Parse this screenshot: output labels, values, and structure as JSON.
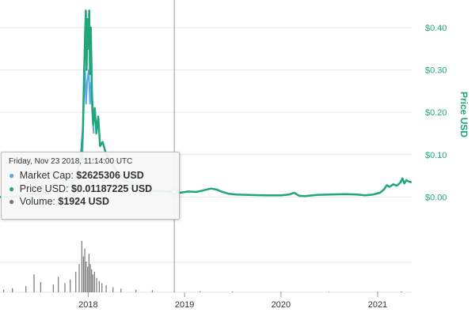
{
  "chart_data": {
    "type": "line",
    "title": "",
    "x_ticks": [
      "2018",
      "2019",
      "2020",
      "2021"
    ],
    "x_range": [
      "2017-02-01",
      "2021-05-10"
    ],
    "y_axis_label": "Price USD",
    "y_ticks": [
      "$0.40",
      "$0.30",
      "$0.20",
      "$0.10",
      "$0.00"
    ],
    "y_range": [
      -0.085,
      0.465
    ],
    "series": [
      {
        "name": "Price USD",
        "color": "#1fa67a",
        "points": [
          [
            "2017-02-01",
            0.0
          ],
          [
            "2017-03-01",
            0.0
          ],
          [
            "2017-04-01",
            0.001
          ],
          [
            "2017-05-01",
            0.005
          ],
          [
            "2017-06-01",
            0.008
          ],
          [
            "2017-07-01",
            0.006
          ],
          [
            "2017-08-01",
            0.01
          ],
          [
            "2017-08-20",
            0.03
          ],
          [
            "2017-09-05",
            0.012
          ],
          [
            "2017-10-01",
            0.018
          ],
          [
            "2017-10-20",
            0.025
          ],
          [
            "2017-11-10",
            0.04
          ],
          [
            "2017-11-25",
            0.07
          ],
          [
            "2017-12-05",
            0.1
          ],
          [
            "2017-12-12",
            0.16
          ],
          [
            "2017-12-16",
            0.28
          ],
          [
            "2017-12-20",
            0.38
          ],
          [
            "2017-12-23",
            0.44
          ],
          [
            "2017-12-26",
            0.3
          ],
          [
            "2017-12-29",
            0.42
          ],
          [
            "2018-01-02",
            0.35
          ],
          [
            "2018-01-05",
            0.44
          ],
          [
            "2018-01-08",
            0.29
          ],
          [
            "2018-01-11",
            0.4
          ],
          [
            "2018-01-15",
            0.25
          ],
          [
            "2018-01-20",
            0.17
          ],
          [
            "2018-01-26",
            0.21
          ],
          [
            "2018-02-01",
            0.15
          ],
          [
            "2018-02-08",
            0.19
          ],
          [
            "2018-02-15",
            0.12
          ],
          [
            "2018-02-25",
            0.13
          ],
          [
            "2018-03-10",
            0.1
          ],
          [
            "2018-03-25",
            0.085
          ],
          [
            "2018-04-10",
            0.07
          ],
          [
            "2018-04-25",
            0.055
          ],
          [
            "2018-05-15",
            0.04
          ],
          [
            "2018-06-10",
            0.035
          ],
          [
            "2018-07-05",
            0.025
          ],
          [
            "2018-08-01",
            0.02
          ],
          [
            "2018-09-01",
            0.015
          ],
          [
            "2018-10-01",
            0.014
          ],
          [
            "2018-11-01",
            0.013
          ],
          [
            "2018-11-23",
            0.01187225
          ],
          [
            "2018-12-15",
            0.01
          ],
          [
            "2019-01-15",
            0.013
          ],
          [
            "2019-02-15",
            0.012
          ],
          [
            "2019-03-15",
            0.016
          ],
          [
            "2019-04-10",
            0.02
          ],
          [
            "2019-05-01",
            0.018
          ],
          [
            "2019-05-20",
            0.013
          ],
          [
            "2019-06-15",
            0.008
          ],
          [
            "2019-07-15",
            0.006
          ],
          [
            "2019-09-01",
            0.005
          ],
          [
            "2019-11-01",
            0.004
          ],
          [
            "2020-01-01",
            0.004
          ],
          [
            "2020-02-01",
            0.006
          ],
          [
            "2020-02-20",
            0.01
          ],
          [
            "2020-03-10",
            0.003
          ],
          [
            "2020-04-01",
            0.002
          ],
          [
            "2020-05-15",
            0.005
          ],
          [
            "2020-07-01",
            0.006
          ],
          [
            "2020-09-01",
            0.007
          ],
          [
            "2020-10-15",
            0.006
          ],
          [
            "2020-11-15",
            0.004
          ],
          [
            "2020-12-15",
            0.006
          ],
          [
            "2021-01-10",
            0.01
          ],
          [
            "2021-01-25",
            0.018
          ],
          [
            "2021-02-05",
            0.028
          ],
          [
            "2021-02-15",
            0.024
          ],
          [
            "2021-03-01",
            0.03
          ],
          [
            "2021-03-15",
            0.027
          ],
          [
            "2021-03-28",
            0.034
          ],
          [
            "2021-04-05",
            0.044
          ],
          [
            "2021-04-12",
            0.032
          ],
          [
            "2021-04-20",
            0.04
          ],
          [
            "2021-05-01",
            0.036
          ],
          [
            "2021-05-10",
            0.035
          ]
        ]
      },
      {
        "name": "Market Cap",
        "color": "#5aa9e6",
        "points": [
          [
            "2017-12-10",
            0.09
          ],
          [
            "2017-12-16",
            0.24
          ],
          [
            "2017-12-20",
            0.3
          ],
          [
            "2017-12-24",
            0.22
          ],
          [
            "2017-12-28",
            0.27
          ],
          [
            "2018-01-03",
            0.3
          ],
          [
            "2018-01-08",
            0.22
          ],
          [
            "2018-01-12",
            0.27
          ],
          [
            "2018-01-16",
            0.2
          ],
          [
            "2018-01-22",
            0.15
          ]
        ]
      }
    ],
    "volume": {
      "name": "Volume",
      "color": "#777777",
      "bars": [
        [
          "2017-02-15",
          0.05
        ],
        [
          "2017-03-20",
          0.08
        ],
        [
          "2017-05-10",
          0.12
        ],
        [
          "2017-06-10",
          0.35
        ],
        [
          "2017-07-05",
          0.2
        ],
        [
          "2017-08-22",
          0.15
        ],
        [
          "2017-09-10",
          0.3
        ],
        [
          "2017-10-05",
          0.18
        ],
        [
          "2017-10-25",
          0.25
        ],
        [
          "2017-11-15",
          0.4
        ],
        [
          "2017-11-28",
          0.55
        ],
        [
          "2017-12-08",
          1.0
        ],
        [
          "2017-12-14",
          0.7
        ],
        [
          "2017-12-19",
          0.85
        ],
        [
          "2017-12-24",
          0.6
        ],
        [
          "2017-12-30",
          0.5
        ],
        [
          "2018-01-04",
          0.75
        ],
        [
          "2018-01-09",
          0.55
        ],
        [
          "2018-01-14",
          0.45
        ],
        [
          "2018-01-19",
          0.35
        ],
        [
          "2018-01-25",
          0.4
        ],
        [
          "2018-02-02",
          0.28
        ],
        [
          "2018-02-12",
          0.22
        ],
        [
          "2018-02-22",
          0.18
        ],
        [
          "2018-03-10",
          0.14
        ],
        [
          "2018-04-05",
          0.1
        ],
        [
          "2018-05-05",
          0.07
        ],
        [
          "2018-07-01",
          0.05
        ],
        [
          "2018-09-01",
          0.04
        ],
        [
          "2018-11-23",
          0.03
        ],
        [
          "2019-03-01",
          0.02
        ],
        [
          "2019-07-01",
          0.015
        ],
        [
          "2020-01-01",
          0.01
        ],
        [
          "2020-07-01",
          0.01
        ],
        [
          "2021-01-01",
          0.01
        ],
        [
          "2021-04-01",
          0.015
        ]
      ]
    },
    "grid": true,
    "legend": "none",
    "crosshair_date": "2018-11-23"
  },
  "tooltip": {
    "date": "Friday, Nov 23 2018, 11:14:00 UTC",
    "rows": [
      {
        "label": "Market Cap:",
        "value": "$2625306 USD",
        "color": "#5aa9e6"
      },
      {
        "label": "Price USD:",
        "value": "$0.01187225 USD",
        "color": "#1fa67a"
      },
      {
        "label": "Volume:",
        "value": "$1924 USD",
        "color": "#777777"
      }
    ]
  }
}
